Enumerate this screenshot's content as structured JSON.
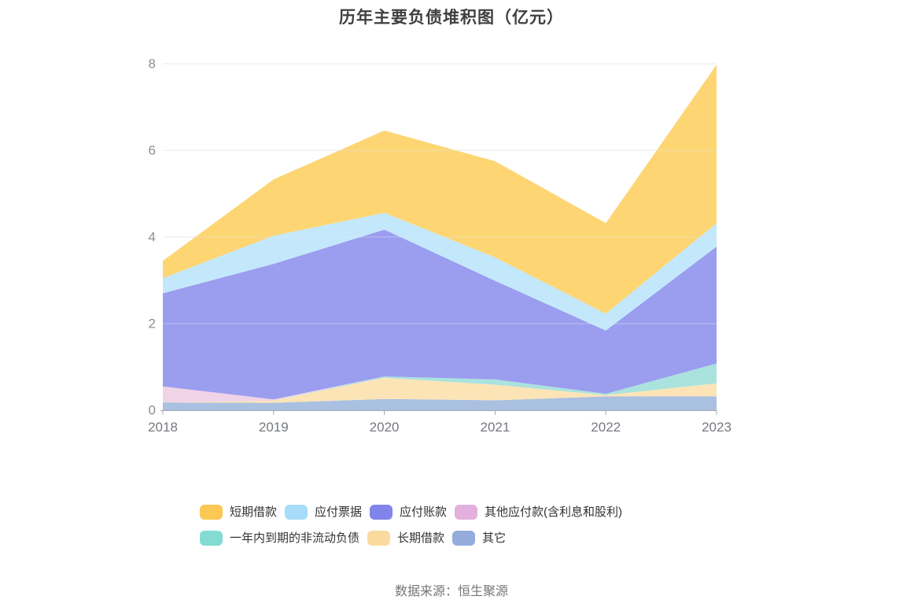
{
  "page": {
    "title": "历年主要负债堆积图（亿元）",
    "source": "数据来源：恒生聚源",
    "background": "#ffffff"
  },
  "chart_data": {
    "type": "area",
    "stacked": true,
    "title": "历年主要负债堆积图（亿元）",
    "unit": "亿元",
    "categories": [
      "2018",
      "2019",
      "2020",
      "2021",
      "2022",
      "2023"
    ],
    "ylim": [
      0,
      8
    ],
    "yticks": [
      0,
      2,
      4,
      6,
      8
    ],
    "grid": true,
    "legend_position": "bottom",
    "series_stack_order": "bottom_to_top",
    "series": [
      {
        "name": "其它",
        "color": "#AAC0E1",
        "legend_color": "#93ACDC",
        "values": [
          0.18,
          0.17,
          0.26,
          0.23,
          0.32,
          0.32
        ]
      },
      {
        "name": "长期借款",
        "color": "#FCE4B6",
        "legend_color": "#FBDA9F",
        "values": [
          0.0,
          0.05,
          0.49,
          0.36,
          0.03,
          0.3
        ]
      },
      {
        "name": "一年内到期的非流动负债",
        "color": "#AAE3DD",
        "legend_color": "#82DCD2",
        "values": [
          0.0,
          0.0,
          0.03,
          0.12,
          0.03,
          0.46
        ]
      },
      {
        "name": "其他应付款(含利息和股利)",
        "color": "#F0D3E7",
        "legend_color": "#E3AFDD",
        "values": [
          0.37,
          0.03,
          0.0,
          0.0,
          0.0,
          0.0
        ]
      },
      {
        "name": "应付账款",
        "color": "#9B9DEF",
        "legend_color": "#8184EB",
        "values": [
          2.15,
          3.13,
          3.39,
          2.28,
          1.46,
          2.7
        ]
      },
      {
        "name": "应付票据",
        "color": "#C3E8FB",
        "legend_color": "#A7DDF8",
        "values": [
          0.35,
          0.65,
          0.39,
          0.54,
          0.39,
          0.54
        ]
      },
      {
        "name": "短期借款",
        "color": "#FDD573",
        "legend_color": "#FBC853",
        "values": [
          0.4,
          1.3,
          1.9,
          2.22,
          2.09,
          3.66
        ]
      }
    ],
    "stack_totals": [
      3.45,
      5.33,
      6.46,
      5.75,
      4.32,
      7.98
    ],
    "legend_order": [
      "短期借款",
      "应付票据",
      "应付账款",
      "其他应付款(含利息和股利)",
      "一年内到期的非流动负债",
      "长期借款",
      "其它"
    ],
    "colors": {
      "gridline": "#E3E9F4",
      "axis_line": "#A3A9B4",
      "y_label": "#8F8F8F",
      "x_label": "#75797F",
      "title": "#3F3F3F",
      "legend_text": "#333333",
      "source_text": "#757575"
    }
  }
}
